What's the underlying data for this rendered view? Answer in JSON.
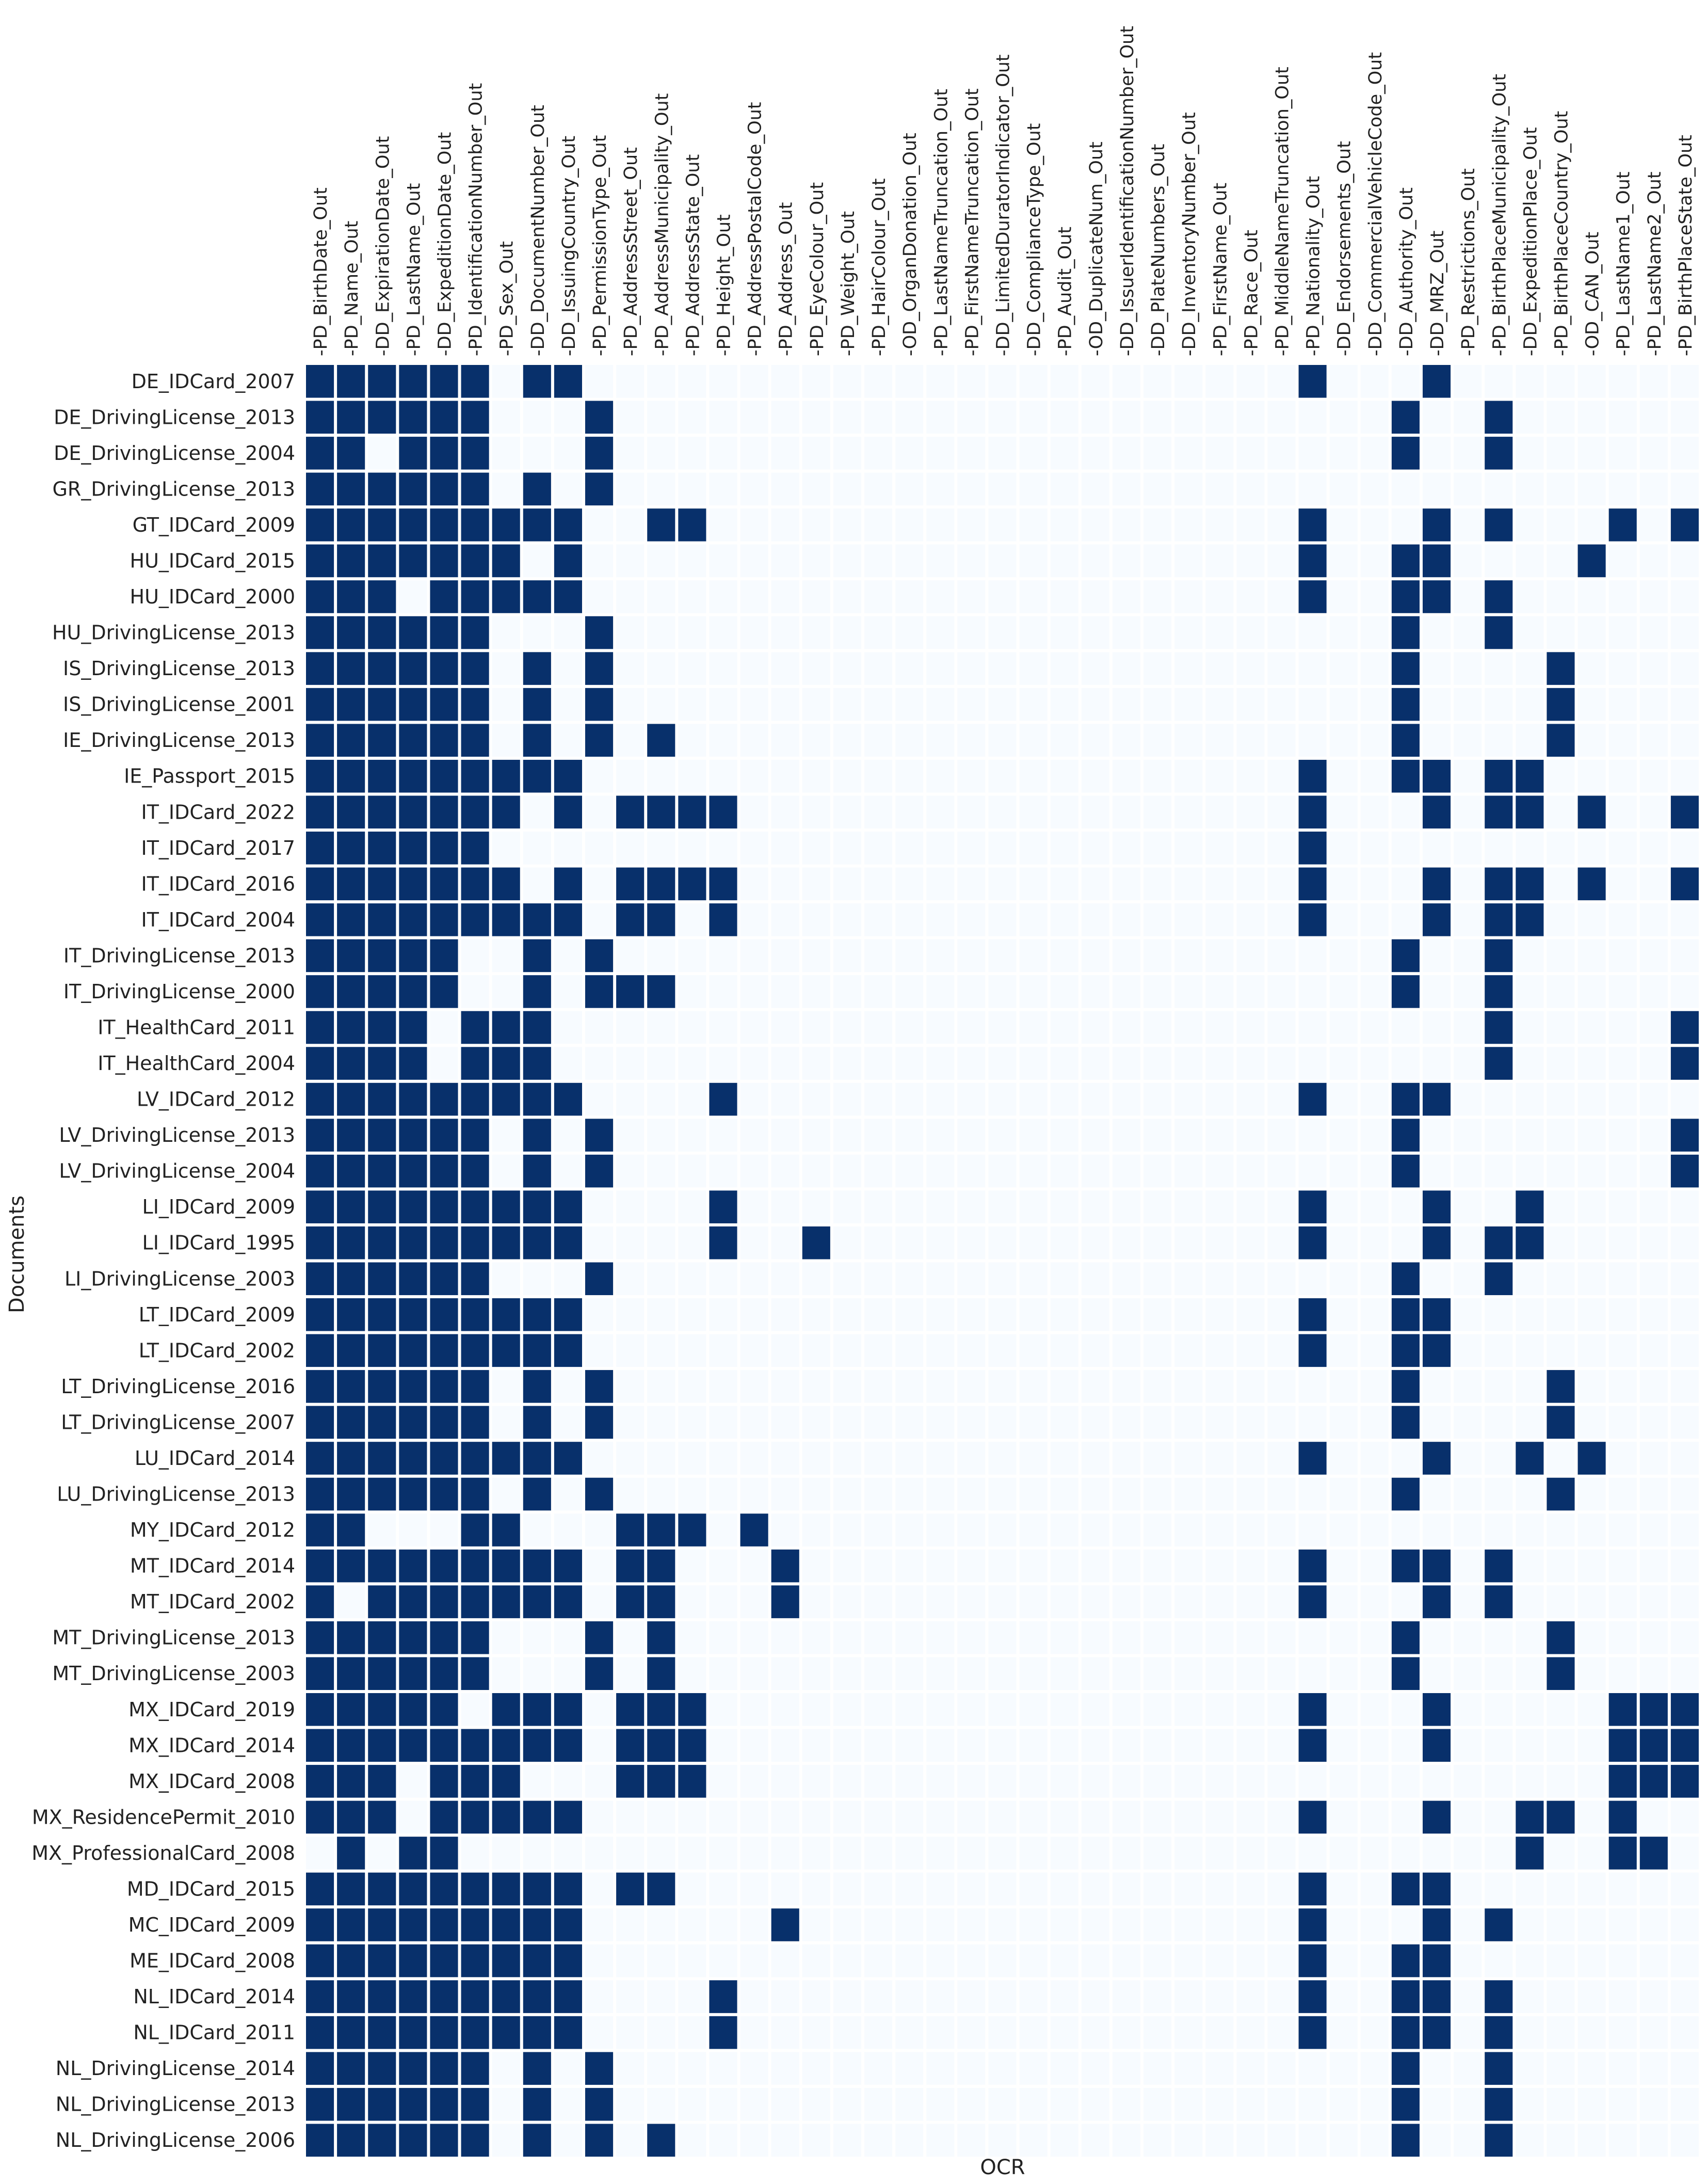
{
  "chart_data": {
    "type": "heatmap",
    "title": "",
    "xlabel": "OCR",
    "ylabel": "Documents",
    "legend": "none",
    "grid": true,
    "colors": {
      "present": "#08306b",
      "absent": "#f7fbff",
      "gridline": "#ffffff"
    },
    "columns": [
      "PD_BirthDate_Out",
      "PD_Name_Out",
      "DD_ExpirationDate_Out",
      "PD_LastName_Out",
      "DD_ExpeditionDate_Out",
      "PD_IdentificationNumber_Out",
      "PD_Sex_Out",
      "DD_DocumentNumber_Out",
      "DD_IssuingCountry_Out",
      "PD_PermissionType_Out",
      "PD_AddressStreet_Out",
      "PD_AddressMunicipality_Out",
      "PD_AddressState_Out",
      "PD_Height_Out",
      "PD_AddressPostalCode_Out",
      "PD_Address_Out",
      "PD_EyeColour_Out",
      "PD_Weight_Out",
      "PD_HairColour_Out",
      "OD_OrganDonation_Out",
      "PD_LastNameTruncation_Out",
      "PD_FirstNameTruncation_Out",
      "DD_LimitedDuratorIndicator_Out",
      "DD_ComplianceType_Out",
      "PD_Audit_Out",
      "OD_DuplicateNum_Out",
      "DD_IssuerIdentificationNumber_Out",
      "DD_PlateNumbers_Out",
      "DD_InventoryNumber_Out",
      "PD_FirstName_Out",
      "PD_Race_Out",
      "PD_MiddleNameTruncation_Out",
      "PD_Nationality_Out",
      "DD_Endorsements_Out",
      "DD_CommercialVehicleCode_Out",
      "DD_Authority_Out",
      "DD_MRZ_Out",
      "PD_Restrictions_Out",
      "PD_BirthPlaceMunicipality_Out",
      "DD_ExpeditionPlace_Out",
      "PD_BirthPlaceCountry_Out",
      "OD_CAN_Out",
      "PD_LastName1_Out",
      "PD_LastName2_Out",
      "PD_BirthPlaceState_Out"
    ],
    "rows": [
      "DE_IDCard_2007",
      "DE_DrivingLicense_2013",
      "DE_DrivingLicense_2004",
      "GR_DrivingLicense_2013",
      "GT_IDCard_2009",
      "HU_IDCard_2015",
      "HU_IDCard_2000",
      "HU_DrivingLicense_2013",
      "IS_DrivingLicense_2013",
      "IS_DrivingLicense_2001",
      "IE_DrivingLicense_2013",
      "IE_Passport_2015",
      "IT_IDCard_2022",
      "IT_IDCard_2017",
      "IT_IDCard_2016",
      "IT_IDCard_2004",
      "IT_DrivingLicense_2013",
      "IT_DrivingLicense_2000",
      "IT_HealthCard_2011",
      "IT_HealthCard_2004",
      "LV_IDCard_2012",
      "LV_DrivingLicense_2013",
      "LV_DrivingLicense_2004",
      "LI_IDCard_2009",
      "LI_IDCard_1995",
      "LI_DrivingLicense_2003",
      "LT_IDCard_2009",
      "LT_IDCard_2002",
      "LT_DrivingLicense_2016",
      "LT_DrivingLicense_2007",
      "LU_IDCard_2014",
      "LU_DrivingLicense_2013",
      "MY_IDCard_2012",
      "MT_IDCard_2014",
      "MT_IDCard_2002",
      "MT_DrivingLicense_2013",
      "MT_DrivingLicense_2003",
      "MX_IDCard_2019",
      "MX_IDCard_2014",
      "MX_IDCard_2008",
      "MX_ResidencePermit_2010",
      "MX_ProfessionalCard_2008",
      "MD_IDCard_2015",
      "MC_IDCard_2009",
      "ME_IDCard_2008",
      "NL_IDCard_2014",
      "NL_IDCard_2011",
      "NL_DrivingLicense_2014",
      "NL_DrivingLicense_2013",
      "NL_DrivingLicense_2006"
    ],
    "filled": [
      [
        0,
        1,
        2,
        3,
        4,
        5,
        7,
        8,
        32,
        36
      ],
      [
        0,
        1,
        2,
        3,
        4,
        5,
        9,
        35,
        38
      ],
      [
        0,
        1,
        3,
        4,
        5,
        9,
        35,
        38
      ],
      [
        0,
        1,
        2,
        3,
        4,
        5,
        7,
        9
      ],
      [
        0,
        1,
        2,
        3,
        4,
        5,
        6,
        7,
        8,
        11,
        12,
        32,
        36,
        38,
        42,
        44
      ],
      [
        0,
        1,
        2,
        3,
        4,
        5,
        6,
        8,
        32,
        35,
        36,
        41
      ],
      [
        0,
        1,
        2,
        4,
        5,
        6,
        7,
        8,
        32,
        35,
        36,
        38
      ],
      [
        0,
        1,
        2,
        3,
        4,
        5,
        9,
        35,
        38
      ],
      [
        0,
        1,
        2,
        3,
        4,
        5,
        7,
        9,
        35,
        40
      ],
      [
        0,
        1,
        2,
        3,
        4,
        5,
        7,
        9,
        35,
        40
      ],
      [
        0,
        1,
        2,
        3,
        4,
        5,
        7,
        9,
        11,
        35,
        40
      ],
      [
        0,
        1,
        2,
        3,
        4,
        5,
        6,
        7,
        8,
        32,
        35,
        36,
        38,
        39
      ],
      [
        0,
        1,
        2,
        3,
        4,
        5,
        6,
        8,
        10,
        11,
        12,
        13,
        32,
        36,
        38,
        39,
        41,
        44
      ],
      [
        0,
        1,
        2,
        3,
        4,
        5,
        32
      ],
      [
        0,
        1,
        2,
        3,
        4,
        5,
        6,
        8,
        10,
        11,
        12,
        13,
        32,
        36,
        38,
        39,
        41,
        44
      ],
      [
        0,
        1,
        2,
        3,
        4,
        5,
        6,
        7,
        8,
        10,
        11,
        13,
        32,
        36,
        38,
        39
      ],
      [
        0,
        1,
        2,
        3,
        4,
        7,
        9,
        35,
        38
      ],
      [
        0,
        1,
        2,
        3,
        4,
        7,
        9,
        10,
        11,
        35,
        38
      ],
      [
        0,
        1,
        2,
        3,
        5,
        6,
        7,
        38,
        44
      ],
      [
        0,
        1,
        2,
        3,
        5,
        6,
        7,
        38,
        44
      ],
      [
        0,
        1,
        2,
        3,
        4,
        5,
        6,
        7,
        8,
        13,
        32,
        35,
        36
      ],
      [
        0,
        1,
        2,
        3,
        4,
        5,
        7,
        9,
        35,
        44
      ],
      [
        0,
        1,
        2,
        3,
        4,
        5,
        7,
        9,
        35,
        44
      ],
      [
        0,
        1,
        2,
        3,
        4,
        5,
        6,
        7,
        8,
        13,
        32,
        36,
        39
      ],
      [
        0,
        1,
        2,
        3,
        4,
        5,
        6,
        7,
        8,
        13,
        16,
        32,
        36,
        38,
        39
      ],
      [
        0,
        1,
        2,
        3,
        4,
        5,
        9,
        35,
        38
      ],
      [
        0,
        1,
        2,
        3,
        4,
        5,
        6,
        7,
        8,
        32,
        35,
        36
      ],
      [
        0,
        1,
        2,
        3,
        4,
        5,
        6,
        7,
        8,
        32,
        35,
        36
      ],
      [
        0,
        1,
        2,
        3,
        4,
        5,
        7,
        9,
        35,
        40
      ],
      [
        0,
        1,
        2,
        3,
        4,
        5,
        7,
        9,
        35,
        40
      ],
      [
        0,
        1,
        2,
        3,
        4,
        5,
        6,
        7,
        8,
        32,
        36,
        39,
        41
      ],
      [
        0,
        1,
        2,
        3,
        4,
        5,
        7,
        9,
        35,
        40
      ],
      [
        0,
        1,
        5,
        6,
        10,
        11,
        12,
        14
      ],
      [
        0,
        1,
        2,
        3,
        4,
        5,
        6,
        7,
        8,
        10,
        11,
        15,
        32,
        35,
        36,
        38
      ],
      [
        0,
        2,
        3,
        4,
        5,
        6,
        7,
        8,
        10,
        11,
        15,
        32,
        36,
        38
      ],
      [
        0,
        1,
        2,
        3,
        4,
        5,
        9,
        11,
        35,
        40
      ],
      [
        0,
        1,
        2,
        3,
        4,
        5,
        9,
        11,
        35,
        40
      ],
      [
        0,
        1,
        2,
        3,
        4,
        6,
        7,
        8,
        10,
        11,
        12,
        32,
        36,
        42,
        43,
        44
      ],
      [
        0,
        1,
        2,
        3,
        4,
        5,
        6,
        7,
        8,
        10,
        11,
        12,
        32,
        36,
        42,
        43,
        44
      ],
      [
        0,
        1,
        2,
        4,
        5,
        6,
        10,
        11,
        12,
        42,
        43,
        44
      ],
      [
        0,
        1,
        2,
        4,
        5,
        6,
        7,
        8,
        32,
        36,
        39,
        40,
        42
      ],
      [
        1,
        3,
        4,
        39,
        42,
        43
      ],
      [
        0,
        1,
        2,
        3,
        4,
        5,
        6,
        7,
        8,
        10,
        11,
        32,
        35,
        36
      ],
      [
        0,
        1,
        2,
        3,
        4,
        5,
        6,
        7,
        8,
        15,
        32,
        36,
        38
      ],
      [
        0,
        1,
        2,
        3,
        4,
        5,
        6,
        7,
        8,
        32,
        35,
        36
      ],
      [
        0,
        1,
        2,
        3,
        4,
        5,
        6,
        7,
        8,
        13,
        32,
        35,
        36,
        38
      ],
      [
        0,
        1,
        2,
        3,
        4,
        5,
        6,
        7,
        8,
        13,
        32,
        35,
        36,
        38
      ],
      [
        0,
        1,
        2,
        3,
        4,
        5,
        7,
        9,
        35,
        38
      ],
      [
        0,
        1,
        2,
        3,
        4,
        5,
        7,
        9,
        35,
        38
      ],
      [
        0,
        1,
        2,
        3,
        4,
        5,
        7,
        9,
        11,
        35,
        38
      ]
    ]
  }
}
